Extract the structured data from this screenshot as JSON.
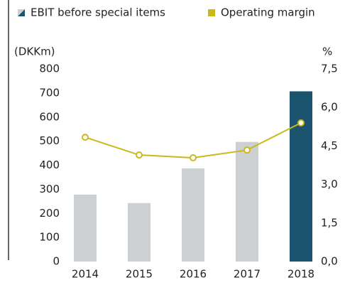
{
  "chart_data": {
    "type": "bar",
    "y_label": "(DKKm)",
    "y2_label": "%",
    "categories": [
      "2014",
      "2015",
      "2016",
      "2017",
      "2018"
    ],
    "series": [
      {
        "name": "EBIT before special items",
        "type": "bar",
        "colors": [
          "#cdd0d2",
          "#cdd0d2",
          "#cdd0d2",
          "#cdd0d2",
          "#1b546e"
        ],
        "values": [
          278,
          243,
          387,
          497,
          707
        ]
      },
      {
        "name": "Operating margin",
        "type": "line",
        "axis": "y2",
        "color": "#cbb91c",
        "values": [
          4.84,
          4.15,
          4.04,
          4.34,
          5.4
        ]
      }
    ],
    "ylim": [
      0,
      800
    ],
    "yticks": [
      0,
      100,
      200,
      300,
      400,
      500,
      600,
      700,
      800
    ],
    "y2lim": [
      0,
      7.5
    ],
    "y2ticks": [
      {
        "value": 0,
        "label": "0,0"
      },
      {
        "value": 1.5,
        "label": "1,5"
      },
      {
        "value": 3,
        "label": "3,0"
      },
      {
        "value": 4.5,
        "label": "4,5"
      },
      {
        "value": 6,
        "label": "6,0"
      },
      {
        "value": 7.5,
        "label": "7,5"
      }
    ],
    "grid": false
  }
}
